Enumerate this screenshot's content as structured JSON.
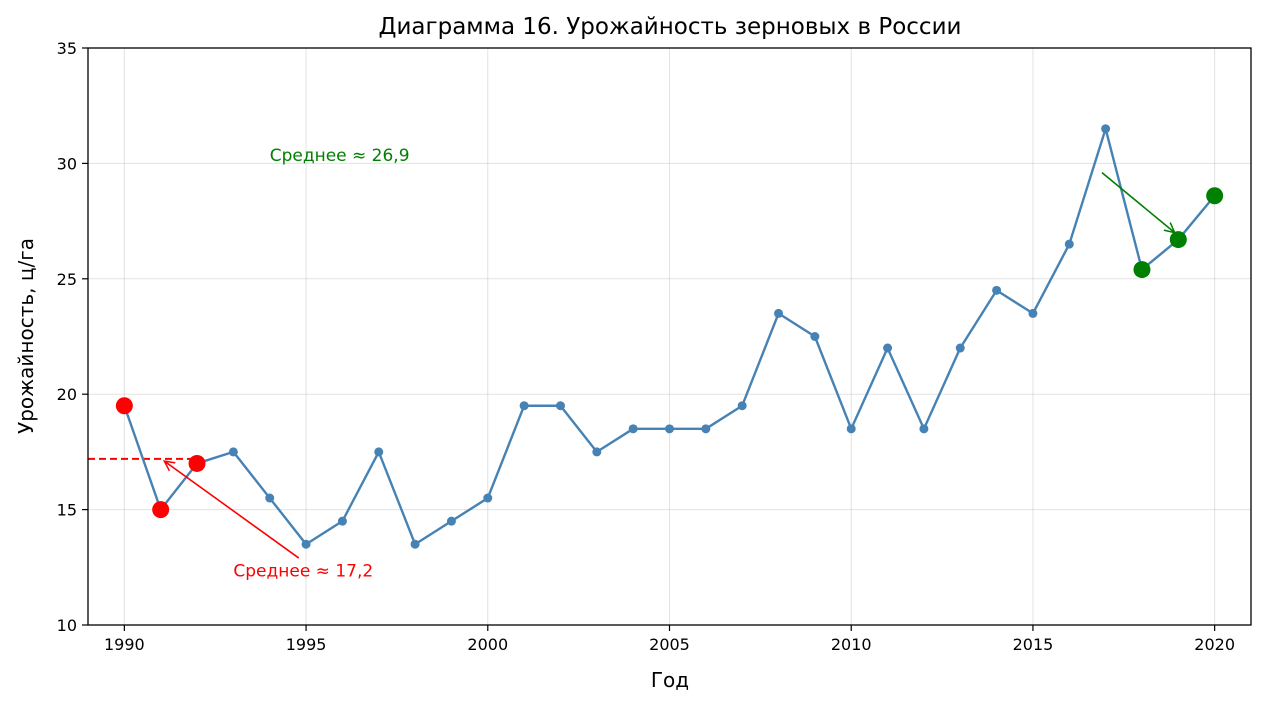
{
  "chart_data": {
    "type": "line",
    "title": "Диаграмма 16. Урожайность зерновых в России",
    "xlabel": "Год",
    "ylabel": "Урожайность, ц/га",
    "xlim": [
      1989,
      2021
    ],
    "ylim": [
      10,
      35
    ],
    "x_ticks": [
      1990,
      1995,
      2000,
      2005,
      2010,
      2015,
      2020
    ],
    "y_ticks": [
      10,
      15,
      20,
      25,
      30,
      35
    ],
    "grid": true,
    "series": [
      {
        "color": "#4682b4",
        "x": [
          1990,
          1991,
          1992,
          1993,
          1994,
          1995,
          1996,
          1997,
          1998,
          1999,
          2000,
          2001,
          2002,
          2003,
          2004,
          2005,
          2006,
          2007,
          2008,
          2009,
          2010,
          2011,
          2012,
          2013,
          2014,
          2015,
          2016,
          2017,
          2018,
          2019,
          2020
        ],
        "values": [
          19.5,
          15.0,
          17.0,
          17.5,
          15.5,
          13.5,
          14.5,
          17.5,
          13.5,
          14.5,
          15.5,
          19.5,
          19.5,
          17.5,
          18.5,
          18.5,
          18.5,
          19.5,
          23.5,
          22.5,
          18.5,
          22.0,
          18.5,
          22.0,
          24.5,
          23.5,
          26.5,
          31.5,
          25.4,
          26.7,
          28.6
        ]
      }
    ],
    "highlights": [
      {
        "color": "#ff0000",
        "years": [
          1990,
          1991,
          1992
        ]
      },
      {
        "color": "#008000",
        "years": [
          2018,
          2019,
          2020
        ]
      }
    ],
    "average_line": {
      "color": "#ff0000",
      "value": 17.2,
      "x_start": 1989,
      "x_end": 1992
    },
    "annotations": [
      {
        "text": "Среднее ≈ 17,2",
        "color": "#ff0000",
        "text_x": 1993.0,
        "text_y": 12.1,
        "arrow_from": [
          1994.8,
          12.9
        ],
        "arrow_to": [
          1991.1,
          17.1
        ]
      },
      {
        "text": "Среднее ≈ 26,9",
        "color": "#008000",
        "text_x": 1994.0,
        "text_y": 30.1,
        "arrow_from": [
          2016.9,
          29.6
        ],
        "arrow_to": [
          2018.9,
          27.0
        ]
      }
    ]
  }
}
